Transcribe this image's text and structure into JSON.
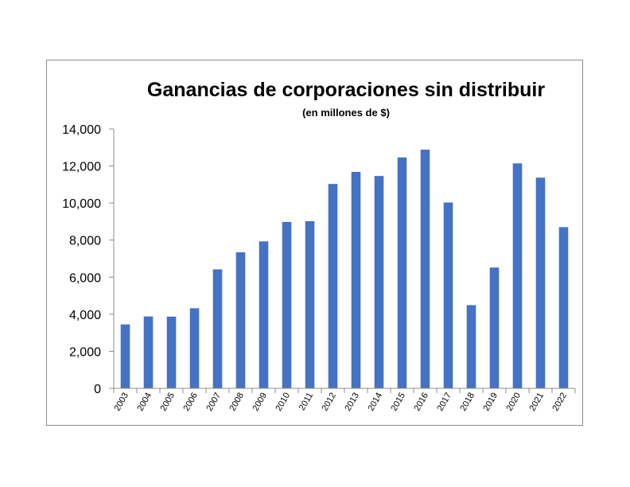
{
  "chart_data": {
    "type": "bar",
    "title": "Ganancias de corporaciones sin distribuir",
    "subtitle": "(en millones de $)",
    "xlabel": "",
    "ylabel": "",
    "categories": [
      "2003",
      "2004",
      "2005",
      "2006",
      "2007",
      "2008",
      "2009",
      "2010",
      "2011",
      "2012",
      "2013",
      "2014",
      "2015",
      "2016",
      "2017",
      "2018",
      "2019",
      "2020",
      "2021",
      "2022"
    ],
    "values": [
      3450,
      3880,
      3870,
      4320,
      6420,
      7340,
      7930,
      8980,
      9020,
      11030,
      11680,
      11460,
      12460,
      12880,
      10030,
      4490,
      6520,
      12140,
      11370,
      8700
    ],
    "ylim": [
      0,
      14000
    ],
    "yticks": [
      "0",
      "2,000",
      "4,000",
      "6,000",
      "8,000",
      "10,000",
      "12,000",
      "14,000"
    ],
    "ytick_values": [
      0,
      2000,
      4000,
      6000,
      8000,
      10000,
      12000,
      14000
    ],
    "grid": false,
    "legend": "none",
    "bar_color": "#4472C4",
    "axis_color": "#8c8c8c"
  }
}
